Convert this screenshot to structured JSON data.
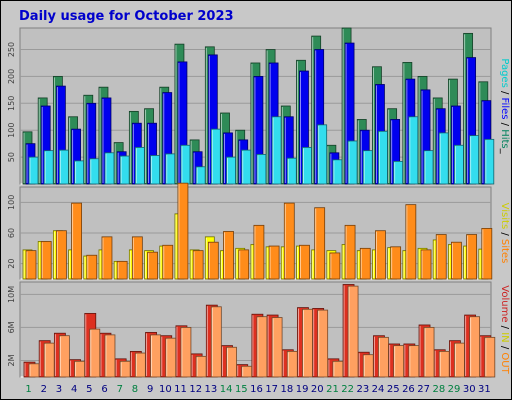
{
  "chart_data": {
    "type": "bar",
    "title": "Daily usage for October 2023",
    "categories": [
      "1",
      "2",
      "3",
      "4",
      "5",
      "6",
      "7",
      "8",
      "9",
      "10",
      "11",
      "12",
      "13",
      "14",
      "15",
      "16",
      "17",
      "18",
      "19",
      "20",
      "21",
      "22",
      "23",
      "24",
      "25",
      "26",
      "27",
      "28",
      "29",
      "30",
      "31"
    ],
    "weekend_days": [
      "1",
      "7",
      "8",
      "14",
      "15",
      "21",
      "22",
      "28",
      "29"
    ],
    "panels": [
      {
        "id": "hits",
        "ylim": [
          0,
          290
        ],
        "yticks": [
          {
            "v": 50,
            "label": "50"
          },
          {
            "v": 100,
            "label": "100"
          },
          {
            "v": 150,
            "label": "150"
          },
          {
            "v": 200,
            "label": "200"
          },
          {
            "v": 250,
            "label": "250"
          }
        ],
        "side_label": [
          {
            "text": "Pages",
            "color": "#00cccc"
          },
          {
            "text": " / ",
            "color": "#000000"
          },
          {
            "text": "Files",
            "color": "#0000ff"
          },
          {
            "text": " / ",
            "color": "#000000"
          },
          {
            "text": "Hits",
            "color": "#00805c"
          },
          {
            "text": "_",
            "color": "#000000"
          }
        ],
        "series": [
          {
            "name": "Hits",
            "color": "#2e8b57",
            "values": [
              97,
              160,
              200,
              125,
              165,
              180,
              77,
              135,
              140,
              180,
              260,
              82,
              255,
              132,
              100,
              225,
              250,
              145,
              230,
              275,
              72,
              290,
              120,
              218,
              140,
              226,
              200,
              160,
              195,
              280,
              190
            ]
          },
          {
            "name": "Files",
            "color": "#0000ee",
            "values": [
              75,
              145,
              182,
              102,
              150,
              160,
              60,
              113,
              113,
              170,
              227,
              60,
              240,
              95,
              82,
              200,
              225,
              125,
              210,
              250,
              58,
              262,
              100,
              185,
              120,
              195,
              175,
              140,
              145,
              235,
              155
            ]
          },
          {
            "name": "Pages",
            "color": "#33ddee",
            "values": [
              50,
              62,
              63,
              43,
              47,
              58,
              52,
              68,
              53,
              56,
              72,
              32,
              102,
              50,
              63,
              55,
              125,
              48,
              68,
              110,
              45,
              80,
              62,
              98,
              42,
              125,
              62,
              95,
              72,
              90,
              83
            ]
          }
        ]
      },
      {
        "id": "visits",
        "ylim": [
          0,
          120
        ],
        "yticks": [
          {
            "v": 20,
            "label": "20"
          },
          {
            "v": 60,
            "label": "60"
          },
          {
            "v": 100,
            "label": "100"
          }
        ],
        "side_label": [
          {
            "text": "Visits",
            "color": "#cccc00"
          },
          {
            "text": " / ",
            "color": "#000000"
          },
          {
            "text": "Sites",
            "color": "#ff8000"
          }
        ],
        "series": [
          {
            "name": "Visits",
            "color": "#ffff00",
            "values": [
              38,
              49,
              63,
              38,
              30,
              38,
              23,
              38,
              37,
              43,
              85,
              38,
              55,
              37,
              40,
              45,
              42,
              42,
              43,
              38,
              37,
              45,
              37,
              38,
              41,
              37,
              40,
              51,
              45,
              43,
              39
            ]
          },
          {
            "name": "Sites",
            "color": "#ff8c1a",
            "values": [
              37,
              49,
              63,
              99,
              31,
              55,
              23,
              55,
              35,
              44,
              125,
              37,
              48,
              62,
              38,
              70,
              43,
              99,
              44,
              93,
              34,
              70,
              40,
              63,
              42,
              97,
              38,
              58,
              48,
              58,
              66
            ]
          }
        ]
      },
      {
        "id": "volume",
        "ylim": [
          0,
          11.5
        ],
        "yticks": [
          {
            "v": 2,
            "label": "2M"
          },
          {
            "v": 6,
            "label": "6M"
          },
          {
            "v": 10,
            "label": "10M"
          }
        ],
        "side_label": [
          {
            "text": "Volume",
            "color": "#cc2020"
          },
          {
            "text": " / ",
            "color": "#000000"
          },
          {
            "text": "IN",
            "color": "#cccc00"
          },
          {
            "text": " / ",
            "color": "#000000"
          },
          {
            "text": "OUT",
            "color": "#ff8000"
          }
        ],
        "series": [
          {
            "name": "Volume",
            "color": "#dd3020",
            "values": [
              1.8,
              4.4,
              5.3,
              2.1,
              7.7,
              5.3,
              2.2,
              3.1,
              5.4,
              5.0,
              6.2,
              2.8,
              8.7,
              3.8,
              1.5,
              7.6,
              7.5,
              3.3,
              8.4,
              8.3,
              2.2,
              11.2,
              3.0,
              5.0,
              4.0,
              4.0,
              6.3,
              3.3,
              4.4,
              7.5,
              5.0
            ]
          },
          {
            "name": "OUT",
            "color": "#ffa060",
            "values": [
              1.6,
              4.1,
              5.0,
              1.9,
              5.8,
              5.1,
              1.9,
              2.9,
              5.1,
              4.7,
              6.0,
              2.5,
              8.5,
              3.6,
              1.3,
              7.3,
              7.2,
              3.1,
              8.2,
              8.1,
              1.9,
              11.0,
              2.7,
              4.8,
              3.8,
              3.8,
              6.0,
              3.1,
              4.1,
              7.3,
              4.8
            ]
          }
        ]
      }
    ]
  }
}
